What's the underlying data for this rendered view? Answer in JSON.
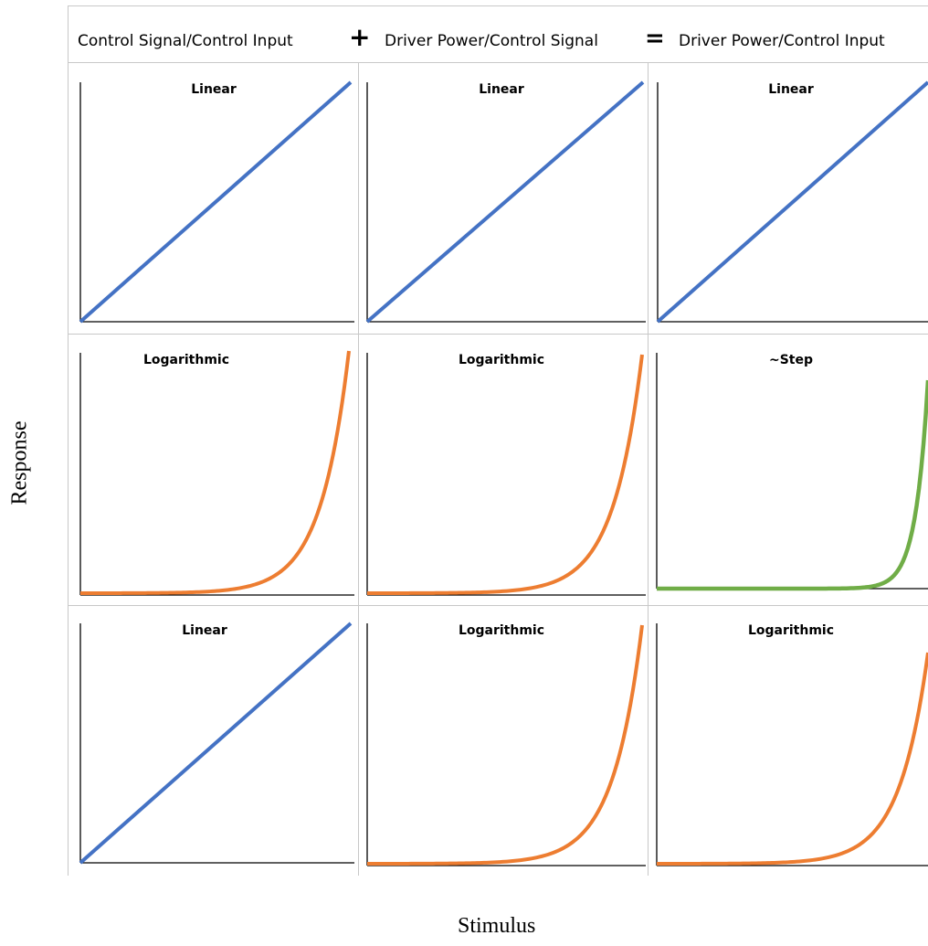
{
  "header": {
    "col1": "Control Signal/Control Input",
    "op1": "+",
    "col2": "Driver Power/Control Signal",
    "op2": "=",
    "col3": "Driver Power/Control Input"
  },
  "axes": {
    "xlabel": "Stimulus",
    "ylabel": "Response"
  },
  "colors": {
    "linear": "#4472c4",
    "logarithmic": "#ed7d31",
    "step": "#70ad47",
    "axis": "#000000",
    "gridline": "#c8c8c8"
  },
  "chart_data": [
    {
      "type": "line",
      "title": "Linear",
      "row": 1,
      "col": 1,
      "curve": "linear",
      "grid": false
    },
    {
      "type": "line",
      "title": "Linear",
      "row": 1,
      "col": 2,
      "curve": "linear",
      "grid": false
    },
    {
      "type": "line",
      "title": "Linear",
      "row": 1,
      "col": 3,
      "curve": "linear",
      "grid": false
    },
    {
      "type": "line",
      "title": "Logarithmic",
      "row": 2,
      "col": 1,
      "curve": "logarithmic",
      "grid": false
    },
    {
      "type": "line",
      "title": "Logarithmic",
      "row": 2,
      "col": 2,
      "curve": "logarithmic",
      "grid": false
    },
    {
      "type": "line",
      "title": "~Step",
      "row": 2,
      "col": 3,
      "curve": "step",
      "grid": false
    },
    {
      "type": "line",
      "title": "Linear",
      "row": 3,
      "col": 1,
      "curve": "linear",
      "grid": false
    },
    {
      "type": "line",
      "title": "Logarithmic",
      "row": 3,
      "col": 2,
      "curve": "logarithmic",
      "grid": false
    },
    {
      "type": "line",
      "title": "Logarithmic",
      "row": 3,
      "col": 3,
      "curve": "logarithmic",
      "grid": false
    }
  ]
}
